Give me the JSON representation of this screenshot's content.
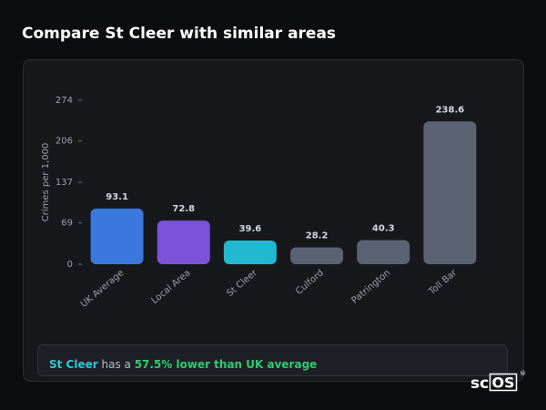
{
  "header": {
    "title": "Compare St Cleer with similar areas"
  },
  "chart_data": {
    "type": "bar",
    "y_label": "Crimes per 1,000",
    "categories": [
      "UK Average",
      "Local Area",
      "St Cleer",
      "Culford",
      "Patrington",
      "Toll Bar"
    ],
    "values": [
      93.1,
      72.8,
      39.6,
      28.2,
      40.3,
      238.6
    ],
    "colors": [
      "#3a78dd",
      "#7c52d8",
      "#22b8d0",
      "#5b6273",
      "#5b6273",
      "#5b6273"
    ],
    "ylim": [
      0,
      274
    ],
    "yticks": [
      0,
      69,
      137,
      206,
      274
    ],
    "grid": false
  },
  "summary": {
    "parts": [
      "St Cleer",
      " has a ",
      "57.5% lower than UK average"
    ]
  },
  "logo": {
    "parts": [
      "sc",
      "OS",
      "®"
    ]
  }
}
